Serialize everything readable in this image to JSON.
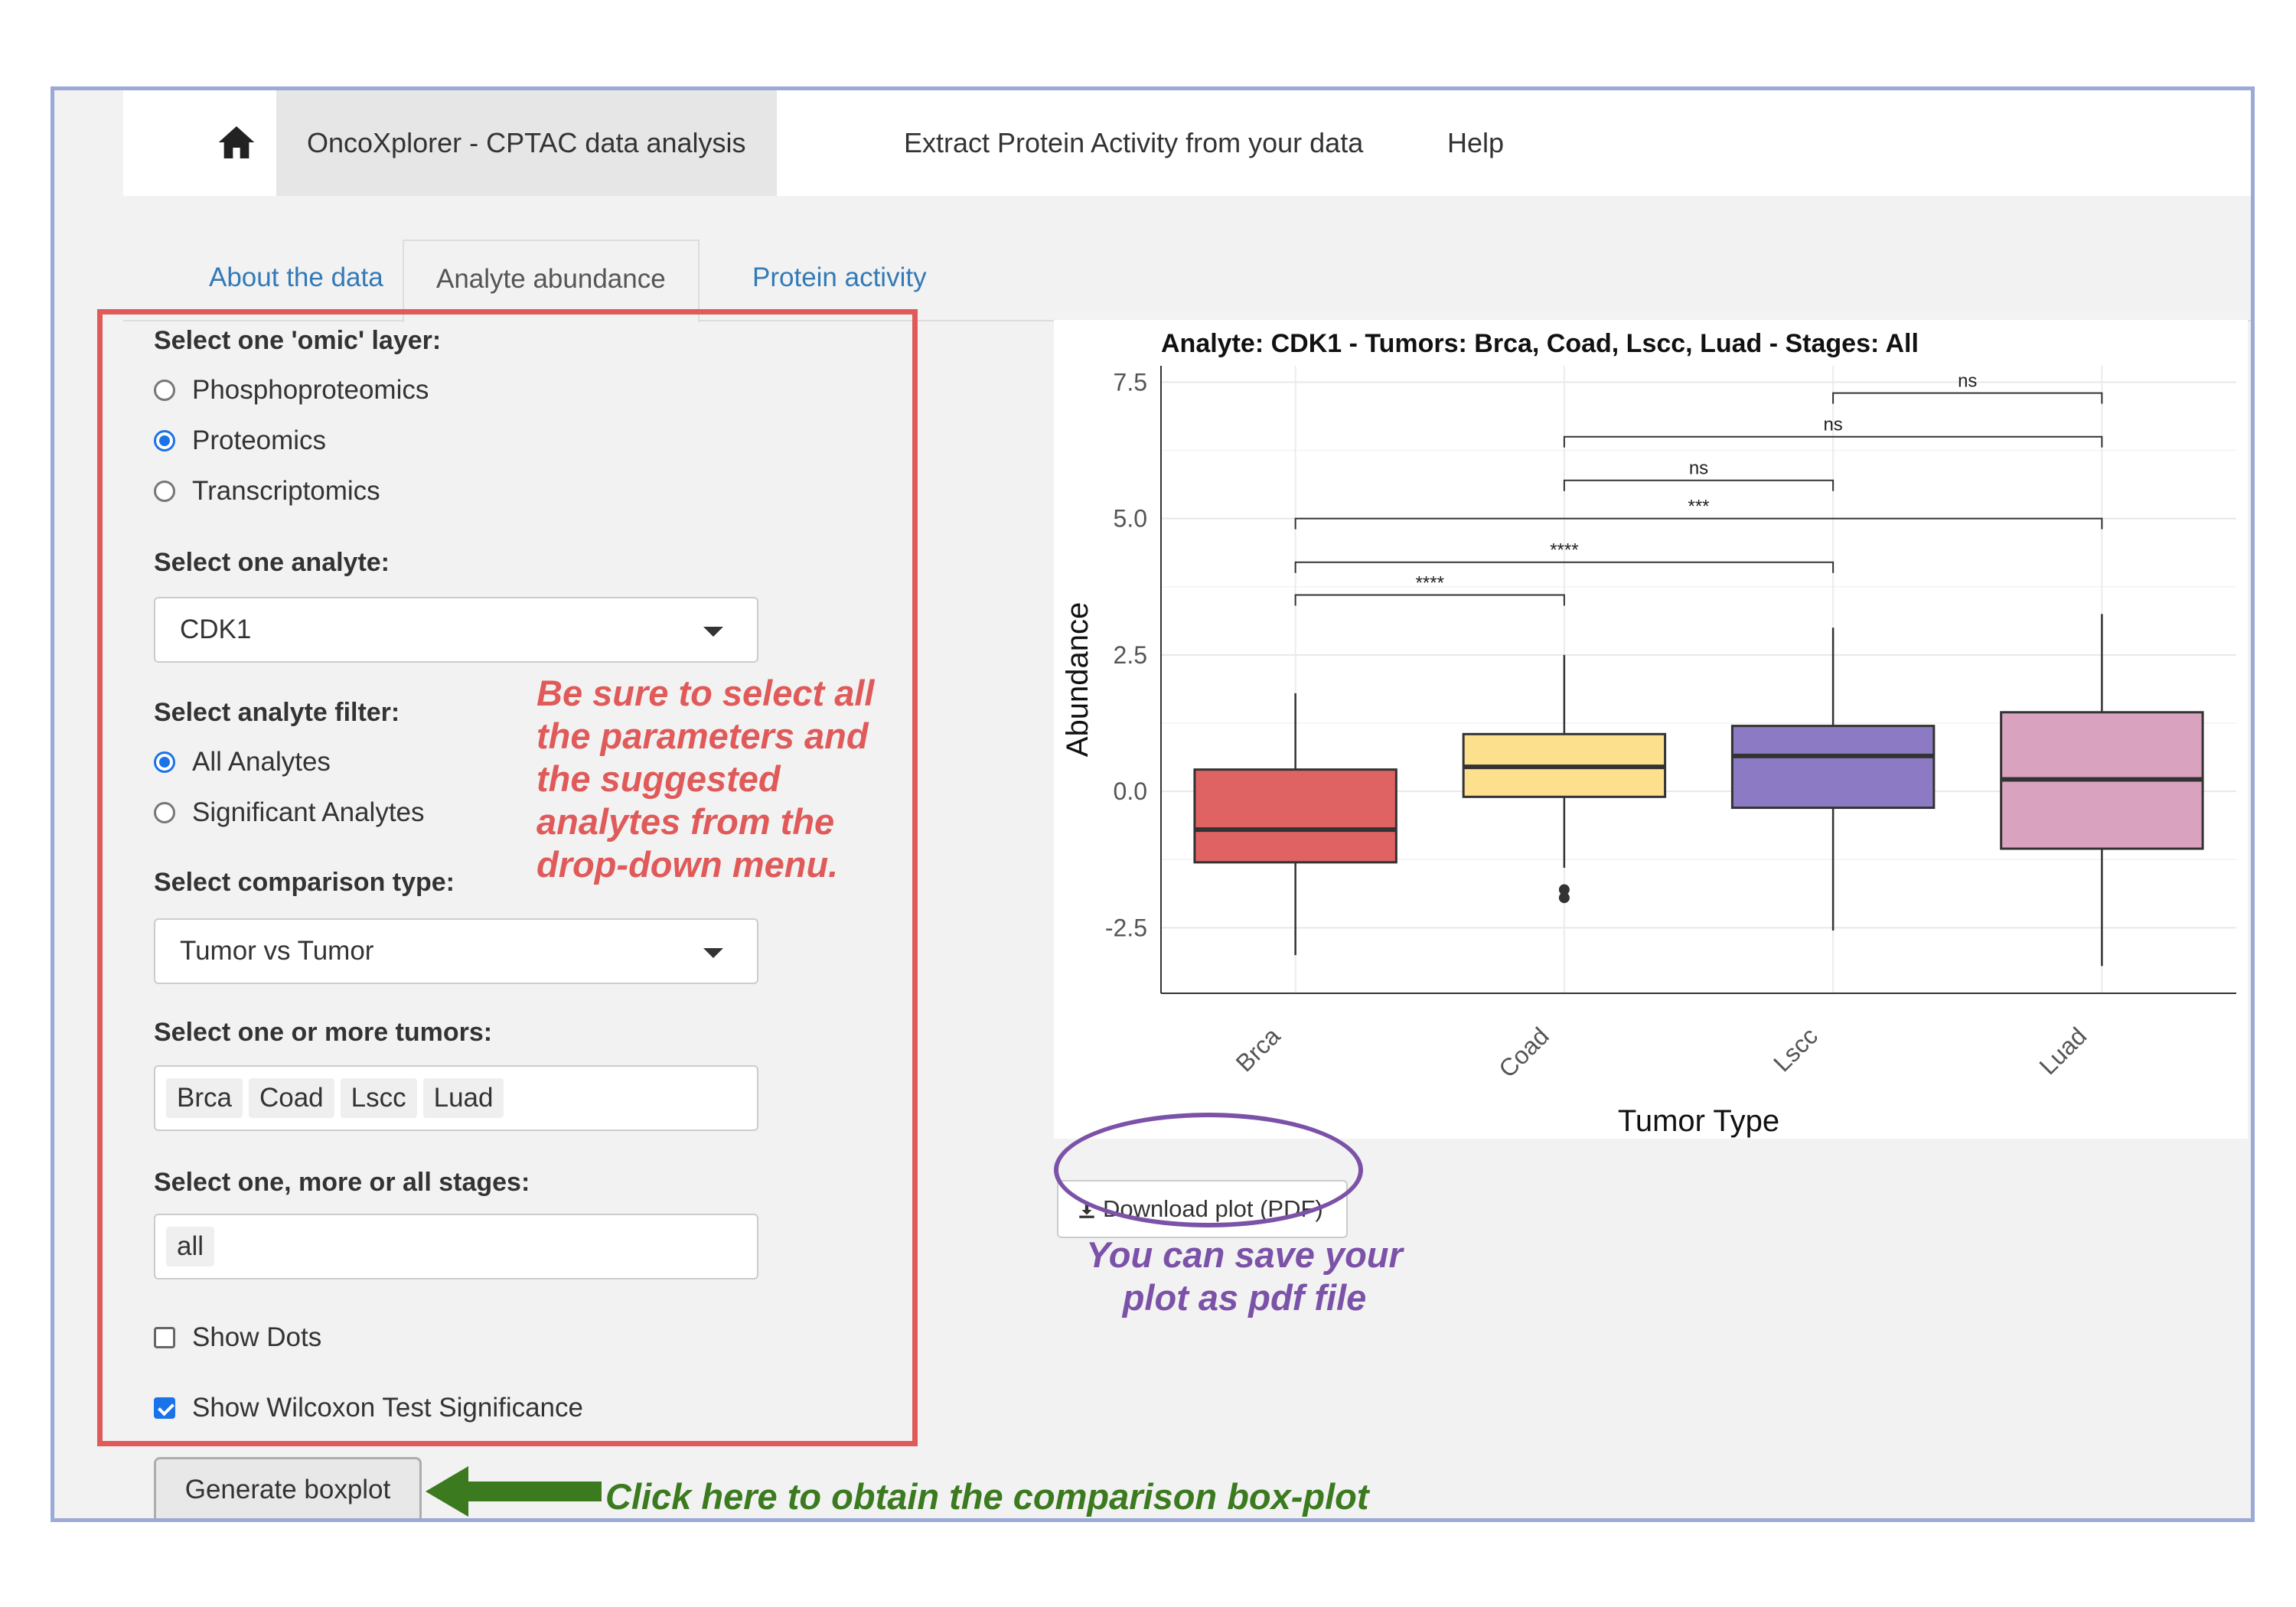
{
  "navbar": {
    "items": [
      "OncoXplorer - CPTAC data analysis",
      "Extract Protein Activity from your data",
      "Help"
    ]
  },
  "tabs": [
    "About the data",
    "Analyte abundance",
    "Protein activity"
  ],
  "form": {
    "omic_label": "Select one 'omic' layer:",
    "omic_options": [
      "Phosphoproteomics",
      "Proteomics",
      "Transcriptomics"
    ],
    "omic_selected": "Proteomics",
    "analyte_label": "Select one analyte:",
    "analyte_value": "CDK1",
    "filter_label": "Select analyte filter:",
    "filter_options": [
      "All Analytes",
      "Significant Analytes"
    ],
    "comparison_label": "Select comparison type:",
    "comparison_value": "Tumor vs Tumor",
    "tumors_label": "Select one or more tumors:",
    "tumors": [
      "Brca",
      "Coad",
      "Lscc",
      "Luad"
    ],
    "stages_label": "Select one, more or all stages:",
    "stages": [
      "all"
    ],
    "show_dots": "Show Dots",
    "show_wilcoxon": "Show Wilcoxon Test Significance",
    "generate_button": "Generate boxplot"
  },
  "annotations": {
    "red_note": "Be sure to select all the parameters and the suggested analytes from the drop-down menu.",
    "green_note": "Click here to obtain the comparison box-plot",
    "purple_note": "You can save your plot as pdf file"
  },
  "download_button": "Download plot (PDF)",
  "chart_data": {
    "type": "box",
    "title": "Analyte: CDK1 - Tumors: Brca, Coad, Lscc, Luad - Stages: All",
    "xlabel": "Tumor Type",
    "ylabel": "Abundance",
    "ylim": [
      -3.7,
      7.8
    ],
    "yticks": [
      "-2.5",
      "0.0",
      "2.5",
      "5.0",
      "7.5"
    ],
    "categories": [
      "Brca",
      "Coad",
      "Lscc",
      "Luad"
    ],
    "colors": [
      "#e06363",
      "#fde08e",
      "#8c7bc4",
      "#d9a3bf"
    ],
    "boxes": [
      {
        "name": "Brca",
        "whisker_low": -3.0,
        "q1": -1.3,
        "median": -0.7,
        "q3": 0.4,
        "whisker_high": 1.8,
        "outliers": []
      },
      {
        "name": "Coad",
        "whisker_low": -1.4,
        "q1": -0.1,
        "median": 0.45,
        "q3": 1.05,
        "whisker_high": 2.5,
        "outliers": [
          -1.8,
          -1.95
        ]
      },
      {
        "name": "Lscc",
        "whisker_low": -2.55,
        "q1": -0.3,
        "median": 0.65,
        "q3": 1.2,
        "whisker_high": 3.0,
        "outliers": []
      },
      {
        "name": "Luad",
        "whisker_low": -3.2,
        "q1": -1.05,
        "median": 0.22,
        "q3": 1.45,
        "whisker_high": 3.25,
        "outliers": []
      }
    ],
    "significance": [
      {
        "from": "Lscc",
        "to": "Luad",
        "label": "ns",
        "y": 7.3
      },
      {
        "from": "Coad",
        "to": "Luad",
        "label": "ns",
        "y": 6.5
      },
      {
        "from": "Coad",
        "to": "Lscc",
        "label": "ns",
        "y": 5.7
      },
      {
        "from": "Brca",
        "to": "Luad",
        "label": "***",
        "y": 5.0
      },
      {
        "from": "Brca",
        "to": "Lscc",
        "label": "****",
        "y": 4.2
      },
      {
        "from": "Brca",
        "to": "Coad",
        "label": "****",
        "y": 3.6
      }
    ]
  }
}
